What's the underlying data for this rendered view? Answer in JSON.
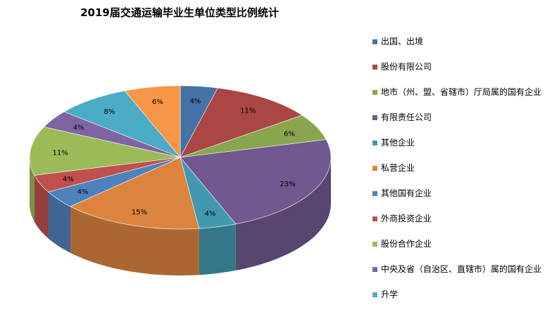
{
  "chart_data": {
    "type": "pie",
    "title": "2019届交通运输毕业生单位类型比例统计",
    "legend_position": "right",
    "slices": [
      {
        "name": "出国、出境",
        "value": 4,
        "label": "4%",
        "color": "#4572A7"
      },
      {
        "name": "股份有限公司",
        "value": 11,
        "label": "11%",
        "color": "#AA4643"
      },
      {
        "name": "地市（州、盟、省辖市）厅局属的国有企业",
        "value": 6,
        "label": "6%",
        "color": "#89A54E"
      },
      {
        "name": "有限责任公司",
        "value": 23,
        "label": "23%",
        "color": "#71588F"
      },
      {
        "name": "其他企业",
        "value": 4,
        "label": "4%",
        "color": "#4198AF"
      },
      {
        "name": "私营企业",
        "value": 15,
        "label": "15%",
        "color": "#DB843D"
      },
      {
        "name": "其他国有企业",
        "value": 4,
        "label": "4%",
        "color": "#4F81BD"
      },
      {
        "name": "外商投资企业",
        "value": 4,
        "label": "4%",
        "color": "#C0504D"
      },
      {
        "name": "股份合作企业",
        "value": 11,
        "label": "11%",
        "color": "#9BBB59"
      },
      {
        "name": "中央及省（自治区、直辖市）属的国有企业",
        "value": 4,
        "label": "4%",
        "color": "#8064A2"
      },
      {
        "name": "升学",
        "value": 8,
        "label": "8%",
        "color": "#4BACC6"
      },
      {
        "name": "",
        "value": 6,
        "label": "6%",
        "color": "#F79646"
      }
    ]
  }
}
